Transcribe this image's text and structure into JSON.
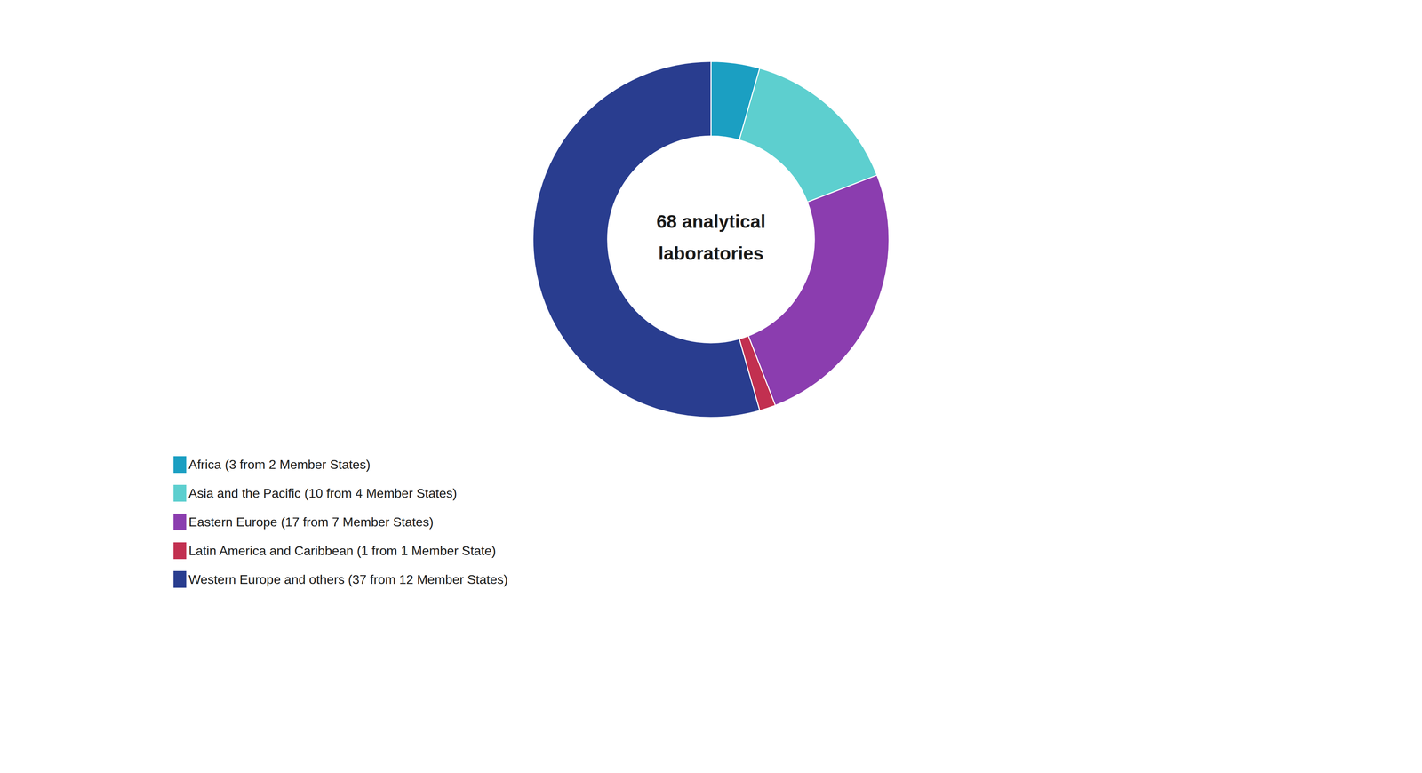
{
  "chart_data": {
    "type": "pie",
    "categories": [
      "Africa (3 from 2 Member States)",
      "Asia and the Pacific (10 from 4 Member States)",
      "Eastern Europe (17 from 7 Member States)",
      "Latin America and Caribbean (1 from 1 Member State)",
      "Western Europe and others (37 from 12 Member States)"
    ],
    "values": [
      3,
      10,
      17,
      1,
      37
    ],
    "colors": [
      "#1B9FC2",
      "#5DCFCF",
      "#8B3DAF",
      "#C23050",
      "#293D8F"
    ],
    "annotations": [
      "68 analytical",
      "laboratories"
    ],
    "legend": "bottom",
    "data_labels": false
  }
}
